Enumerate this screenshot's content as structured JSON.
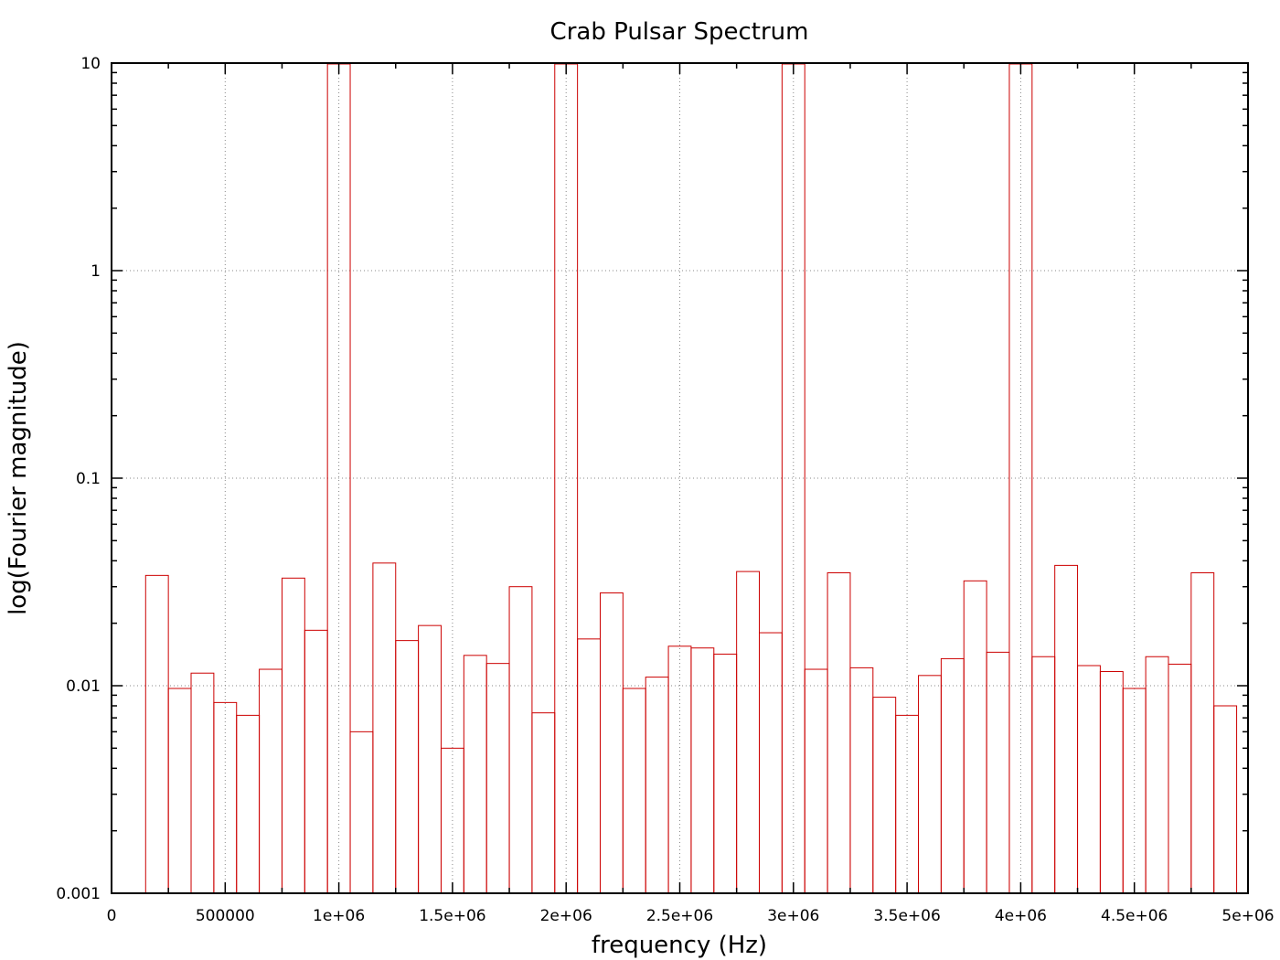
{
  "chart_data": {
    "type": "bar",
    "title": "Crab Pulsar Spectrum",
    "xlabel": "frequency (Hz)",
    "ylabel": "log(Fourier magnitude)",
    "x_scale": "linear",
    "y_scale": "log",
    "xlim": [
      0,
      5000000
    ],
    "ylim": [
      0.001,
      10
    ],
    "grid": true,
    "bar_color": "#cc0000",
    "bar_width": 100000,
    "x_ticks": [
      0,
      500000,
      1000000,
      1500000,
      2000000,
      2500000,
      3000000,
      3500000,
      4000000,
      4500000,
      5000000
    ],
    "x_tick_labels": [
      "0",
      "500000",
      "1e+06",
      "1.5e+06",
      "2e+06",
      "2.5e+06",
      "3e+06",
      "3.5e+06",
      "4e+06",
      "4.5e+06",
      "5e+06"
    ],
    "y_ticks": [
      0.001,
      0.01,
      0.1,
      1,
      10
    ],
    "y_tick_labels": [
      "0.001",
      "0.01",
      "0.1",
      "1",
      "10"
    ],
    "x": [
      200000,
      300000,
      400000,
      500000,
      600000,
      700000,
      800000,
      900000,
      1000000,
      1100000,
      1200000,
      1300000,
      1400000,
      1500000,
      1600000,
      1700000,
      1800000,
      1900000,
      2000000,
      2100000,
      2200000,
      2300000,
      2400000,
      2500000,
      2600000,
      2700000,
      2800000,
      2900000,
      3000000,
      3100000,
      3200000,
      3300000,
      3400000,
      3500000,
      3600000,
      3700000,
      3800000,
      3900000,
      4000000,
      4100000,
      4200000,
      4300000,
      4400000,
      4500000,
      4600000,
      4700000,
      4800000,
      4900000
    ],
    "values": [
      0.034,
      0.0097,
      0.0115,
      0.0083,
      0.0072,
      0.012,
      0.033,
      0.0185,
      10,
      0.006,
      0.039,
      0.0165,
      0.0195,
      0.005,
      0.014,
      0.0128,
      0.03,
      0.0074,
      10,
      0.0168,
      0.028,
      0.0097,
      0.011,
      0.0155,
      0.0152,
      0.0142,
      0.0355,
      0.018,
      10,
      0.012,
      0.035,
      0.0122,
      0.0088,
      0.0072,
      0.0112,
      0.0135,
      0.032,
      0.0145,
      10,
      0.0138,
      0.038,
      0.0125,
      0.0117,
      0.0097,
      0.0138,
      0.0127,
      0.035,
      0.008
    ]
  }
}
